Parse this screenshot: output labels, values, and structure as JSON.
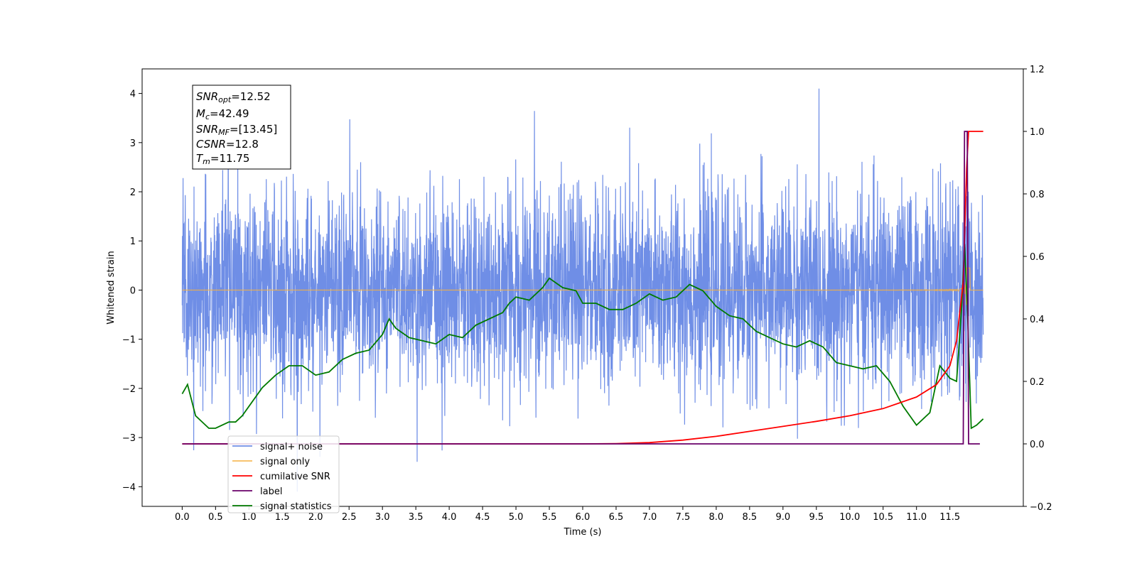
{
  "chart_data": {
    "type": "line",
    "title": "",
    "xlabel": "Time (s)",
    "ylabel": "Whitened strain",
    "xlim": [
      -0.6,
      12.6
    ],
    "ylim": [
      -4.4,
      4.5
    ],
    "y2lim": [
      -0.2,
      1.2
    ],
    "x_ticks": [
      "0.0",
      "0.5",
      "1.0",
      "1.5",
      "2.0",
      "2.5",
      "3.0",
      "3.5",
      "4.0",
      "4.5",
      "5.0",
      "5.5",
      "6.0",
      "6.5",
      "7.0",
      "7.5",
      "8.0",
      "8.5",
      "9.0",
      "9.5",
      "10.0",
      "10.5",
      "11.0",
      "11.5"
    ],
    "y_ticks": [
      "4",
      "3",
      "2",
      "1",
      "0",
      "−1",
      "−2",
      "−3",
      "−4"
    ],
    "y2_ticks": [
      "1.2",
      "1.0",
      "0.8",
      "0.6",
      "0.4",
      "0.2",
      "0.0",
      "−0.2"
    ],
    "grid": false,
    "legend_position": "lower-left",
    "colors": {
      "signal_noise": "#6f8ee6",
      "signal_only": "#f5b041",
      "cumulative_snr": "#ff0000",
      "label": "#6a006a",
      "signal_statistics": "#007a00"
    },
    "legend": [
      {
        "key": "signal_noise",
        "label": "signal+ noise"
      },
      {
        "key": "signal_only",
        "label": "signal only"
      },
      {
        "key": "cumulative_snr",
        "label": "cumilative SNR"
      },
      {
        "key": "label",
        "label": "label"
      },
      {
        "key": "signal_statistics",
        "label": "signal statistics"
      }
    ],
    "series": [
      {
        "key": "signal_noise",
        "axis": "left",
        "x_range": [
          0.0,
          12.0
        ],
        "std": 1.0,
        "max_abs": 4.1
      },
      {
        "key": "signal_only",
        "axis": "left",
        "x_range": [
          0.0,
          12.0
        ],
        "merger_time": 11.75,
        "peak_amplitude": 1.05
      },
      {
        "key": "cumulative_snr",
        "axis": "right",
        "x": [
          0.0,
          6.0,
          6.5,
          7.0,
          7.5,
          8.0,
          8.5,
          9.0,
          9.5,
          10.0,
          10.5,
          11.0,
          11.3,
          11.5,
          11.6,
          11.7,
          11.75,
          11.78,
          12.0
        ],
        "y": [
          0.0,
          0.0,
          0.001,
          0.004,
          0.012,
          0.024,
          0.04,
          0.056,
          0.072,
          0.09,
          0.113,
          0.15,
          0.19,
          0.25,
          0.33,
          0.52,
          0.88,
          1.0,
          1.0
        ]
      },
      {
        "key": "label",
        "axis": "right",
        "x": [
          0.0,
          11.6,
          11.7,
          11.72,
          11.76,
          11.78,
          11.85,
          11.95
        ],
        "y": [
          0.0,
          0.0,
          0.0,
          1.0,
          1.0,
          0.0,
          0.0,
          0.0
        ]
      },
      {
        "key": "signal_statistics",
        "axis": "right",
        "x": [
          0.0,
          0.08,
          0.2,
          0.4,
          0.5,
          0.7,
          0.8,
          0.9,
          1.0,
          1.2,
          1.4,
          1.6,
          1.8,
          2.0,
          2.2,
          2.4,
          2.6,
          2.8,
          3.0,
          3.1,
          3.2,
          3.4,
          3.6,
          3.8,
          4.0,
          4.2,
          4.4,
          4.6,
          4.8,
          4.9,
          5.0,
          5.2,
          5.4,
          5.5,
          5.7,
          5.9,
          6.0,
          6.2,
          6.4,
          6.6,
          6.8,
          7.0,
          7.2,
          7.4,
          7.6,
          7.8,
          8.0,
          8.2,
          8.4,
          8.6,
          8.8,
          9.0,
          9.2,
          9.4,
          9.6,
          9.8,
          10.0,
          10.2,
          10.4,
          10.6,
          10.8,
          11.0,
          11.2,
          11.35,
          11.5,
          11.6,
          11.68,
          11.72,
          11.76,
          11.82,
          11.9,
          12.0
        ],
        "y": [
          0.16,
          0.19,
          0.09,
          0.05,
          0.05,
          0.07,
          0.07,
          0.09,
          0.12,
          0.18,
          0.22,
          0.25,
          0.25,
          0.22,
          0.23,
          0.27,
          0.29,
          0.3,
          0.35,
          0.4,
          0.37,
          0.34,
          0.33,
          0.32,
          0.35,
          0.34,
          0.38,
          0.4,
          0.42,
          0.45,
          0.47,
          0.46,
          0.5,
          0.53,
          0.5,
          0.49,
          0.45,
          0.45,
          0.43,
          0.43,
          0.45,
          0.48,
          0.46,
          0.47,
          0.51,
          0.49,
          0.44,
          0.41,
          0.4,
          0.36,
          0.34,
          0.32,
          0.31,
          0.33,
          0.31,
          0.26,
          0.25,
          0.24,
          0.25,
          0.2,
          0.12,
          0.06,
          0.1,
          0.25,
          0.21,
          0.2,
          0.45,
          0.64,
          0.45,
          0.05,
          0.06,
          0.08
        ]
      }
    ],
    "annotation": {
      "lines": [
        {
          "main": "SNR",
          "sub": "opt",
          "value": "=12.52"
        },
        {
          "main": "M",
          "sub": "c",
          "value": "=42.49"
        },
        {
          "main": "SNR",
          "sub": "MF",
          "value": "=[13.45]"
        },
        {
          "main": "CSNR",
          "sub": "",
          "value": "=12.8"
        },
        {
          "main": "T",
          "sub": "m",
          "value": "=11.75"
        }
      ]
    }
  }
}
